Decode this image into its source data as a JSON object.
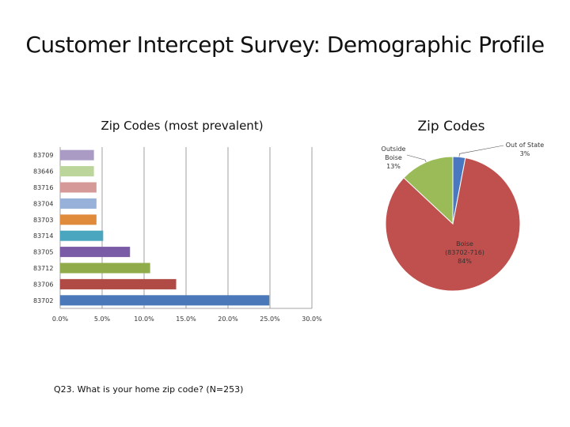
{
  "slide": {
    "title": "Customer Intercept Survey: Demographic Profile"
  },
  "chart_data": [
    {
      "type": "bar",
      "orientation": "horizontal",
      "title": "Zip Codes (most prevalent)",
      "categories": [
        "83709",
        "83646",
        "83716",
        "83704",
        "83703",
        "83714",
        "83705",
        "83712",
        "83706",
        "83702"
      ],
      "values": [
        4.0,
        4.0,
        4.3,
        4.3,
        4.3,
        5.1,
        8.3,
        10.7,
        13.8,
        24.9
      ],
      "colors": [
        "#a99bc4",
        "#bcd59a",
        "#d59a97",
        "#97b1d8",
        "#e08a3c",
        "#4aa5bf",
        "#7a5ba6",
        "#8fab4a",
        "#b04a45",
        "#4a78b8"
      ],
      "xticks": [
        "0.0%",
        "5.0%",
        "10.0%",
        "15.0%",
        "20.0%",
        "25.0%",
        "30.0%"
      ],
      "xlim": [
        0,
        30
      ],
      "grid": true
    },
    {
      "type": "pie",
      "title": "Zip Codes",
      "slices": [
        {
          "label": "Out of State",
          "pct": "3%",
          "value": 3,
          "color": "#4a78c0"
        },
        {
          "label": "Boise",
          "sublabel": "(83702-716)",
          "pct": "84%",
          "value": 84,
          "color": "#c0504d"
        },
        {
          "label": "Outside",
          "sublabel": "Boise",
          "pct": "13%",
          "value": 13,
          "color": "#9bbb59"
        }
      ]
    }
  ],
  "footnote": "Q23. What is your home zip code? (N=253)"
}
